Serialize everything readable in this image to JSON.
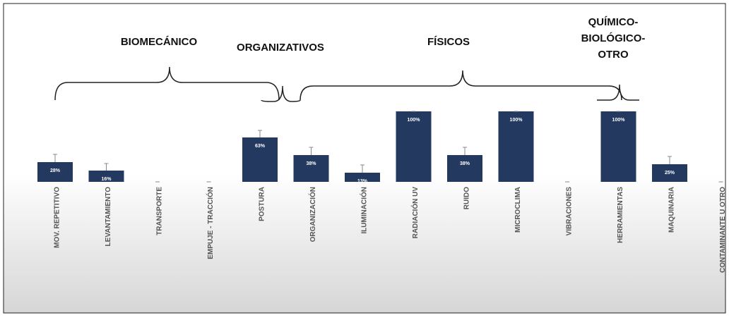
{
  "chart_data": {
    "type": "bar",
    "categories": [
      "MOV. REPETITIVO",
      "LEVANTAMIENTO",
      "TRANSPORTE",
      "EMPUJE - TRACCIÓN",
      "POSTURA",
      "ORGANIZACIÓN",
      "ILUMINACIÓN",
      "RADIACIÓN UV",
      "RUIDO",
      "MICROCLIMA",
      "VIBRACIONES",
      "HERRAMIENTAS",
      "MAQUINARIA",
      "CONTAMINANTE U OTRO"
    ],
    "values": [
      28,
      16,
      0,
      0,
      63,
      38,
      13,
      100,
      38,
      100,
      0,
      100,
      25,
      0
    ],
    "value_labels": [
      "28%",
      "16%",
      null,
      null,
      "63%",
      "38%",
      "13%",
      "100%",
      "38%",
      "100%",
      null,
      "100%",
      "25%",
      null
    ],
    "errors": [
      11,
      10,
      0,
      0,
      10,
      11,
      11,
      0,
      11,
      0,
      0,
      0,
      11,
      0
    ],
    "color": "#24395f",
    "ylim": [
      0,
      100
    ],
    "groups": [
      {
        "lines": [
          "BIOMECÁNICO"
        ]
      },
      {
        "lines": [
          "ORGANIZATIVOS"
        ]
      },
      {
        "lines": [
          "FÍSICOS"
        ]
      },
      {
        "lines": [
          "QUÍMICO-",
          "BIOLÓGICO-",
          "OTRO"
        ]
      }
    ]
  }
}
